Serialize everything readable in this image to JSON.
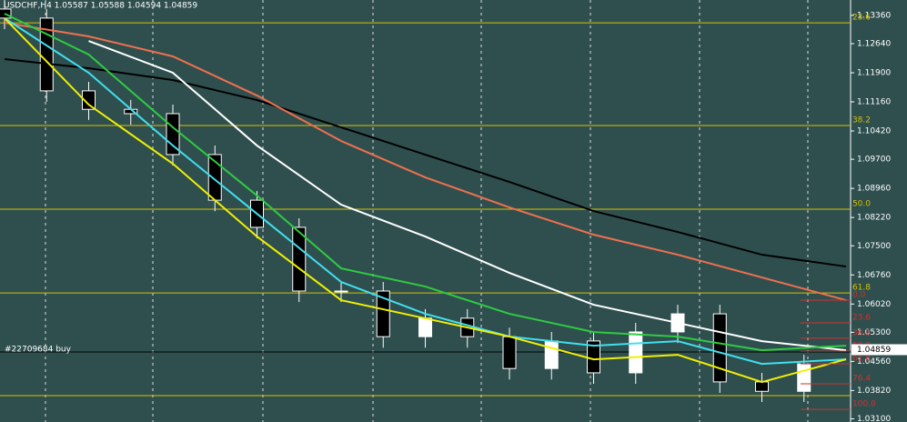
{
  "chart_data": {
    "type": "candlestick",
    "title": "USDCHF,H4  1.05587 1.05588 1.04594 1.04859",
    "ylim": [
      1.0302,
      1.1375
    ],
    "xlim": [
      0,
      40
    ],
    "yticks": [
      {
        "value": 1.1336,
        "label": "1.13360"
      },
      {
        "value": 1.1264,
        "label": "1.12640"
      },
      {
        "value": 1.119,
        "label": "1.11900"
      },
      {
        "value": 1.1116,
        "label": "1.11160"
      },
      {
        "value": 1.1042,
        "label": "1.10420"
      },
      {
        "value": 1.097,
        "label": "1.09700"
      },
      {
        "value": 1.0896,
        "label": "1.08960"
      },
      {
        "value": 1.0822,
        "label": "1.08220"
      },
      {
        "value": 1.075,
        "label": "1.07500"
      },
      {
        "value": 1.0676,
        "label": "1.06760"
      },
      {
        "value": 1.0602,
        "label": "1.06020"
      },
      {
        "value": 1.053,
        "label": "1.05300"
      },
      {
        "value": 1.0456,
        "label": "1.04560"
      },
      {
        "value": 1.0382,
        "label": "1.03820"
      },
      {
        "value": 1.031,
        "label": "1.03100"
      }
    ],
    "candles": {
      "bull_color": "#ffffff",
      "bear_color": "#000000",
      "wick_color": "#ffffff",
      "x": [
        0,
        2,
        4,
        6,
        8,
        10,
        12,
        14,
        16,
        18,
        20,
        22,
        24,
        26,
        28,
        30,
        32,
        34,
        36,
        38
      ],
      "open": [
        1.1352,
        1.1329,
        1.1144,
        1.1097,
        1.1086,
        1.0982,
        1.0866,
        1.0797,
        1.0635,
        1.0635,
        1.0519,
        1.0566,
        1.0519,
        1.0438,
        1.0508,
        1.0427,
        1.0531,
        1.0577,
        1.0404,
        1.038
      ],
      "high": [
        1.1375,
        1.1352,
        1.1167,
        1.1121,
        1.1109,
        1.1005,
        1.0889,
        1.082,
        1.0658,
        1.0658,
        1.0589,
        1.0589,
        1.0542,
        1.0531,
        1.0531,
        1.0554,
        1.06,
        1.06,
        1.0427,
        1.0473
      ],
      "low": [
        1.1301,
        1.1116,
        1.107,
        1.1058,
        1.0954,
        1.0838,
        1.0769,
        1.0607,
        1.0607,
        1.0491,
        1.0491,
        1.0491,
        1.041,
        1.041,
        1.0399,
        1.0399,
        1.0503,
        1.0376,
        1.0353,
        1.0353
      ],
      "close": [
        1.1329,
        1.1144,
        1.1097,
        1.1086,
        1.0982,
        1.0866,
        1.0797,
        1.0635,
        1.0635,
        1.0519,
        1.0566,
        1.0519,
        1.0438,
        1.0508,
        1.0427,
        1.0531,
        1.0577,
        1.0404,
        1.038,
        1.045
      ]
    },
    "x": [
      0,
      4,
      8,
      12,
      16,
      20,
      24,
      28,
      32,
      36,
      40
    ],
    "series": [
      {
        "color": "#000000",
        "values": [
          1.12247,
          1.12015,
          1.11715,
          1.11206,
          1.10512,
          1.09818,
          1.09124,
          1.08384,
          1.07852,
          1.07274,
          1.06973
        ]
      },
      {
        "color": "#f0704e",
        "values": [
          1.13172,
          1.12825,
          1.12316,
          1.11321,
          1.10165,
          1.0924,
          1.08476,
          1.07783,
          1.07274,
          1.06695,
          1.06117
        ]
      },
      {
        "color": "#ffffff",
        "values": [
          null,
          1.12709,
          1.119,
          1.10049,
          1.08546,
          1.07736,
          1.06811,
          1.06001,
          1.05539,
          1.05076,
          1.04845
        ]
      },
      {
        "color": "#2ecc40",
        "values": [
          1.13403,
          1.12362,
          1.10512,
          1.08777,
          1.06927,
          1.06464,
          1.0577,
          1.05307,
          1.05192,
          1.04845,
          1.04961
        ]
      },
      {
        "color": "#40e0f0",
        "values": [
          1.13287,
          1.119,
          1.10049,
          1.08314,
          1.0658,
          1.0577,
          1.05192,
          1.04961,
          1.05076,
          1.04498,
          1.04614
        ]
      },
      {
        "color": "#f0f000",
        "values": [
          1.13287,
          1.1109,
          1.09587,
          1.07736,
          1.06117,
          1.05655,
          1.05192,
          1.04614,
          1.04729,
          1.04035,
          1.04614
        ]
      }
    ],
    "fib_levels": {
      "color": "#d4c000",
      "levels": [
        {
          "price": 1.1317,
          "label": "23.6"
        },
        {
          "price": 1.1056,
          "label": "38.2"
        },
        {
          "price": 1.0843,
          "label": "50.0"
        },
        {
          "price": 1.063,
          "label": "61.8"
        },
        {
          "price": 1.0369,
          "label": null
        }
      ]
    },
    "fib_levels_2": {
      "color": "#d03030",
      "levels": [
        {
          "price": 1.0612,
          "label": "0.0"
        },
        {
          "price": 1.0554,
          "label": "23.6"
        },
        {
          "price": 1.0515,
          "label": "38.2"
        },
        {
          "price": 1.0482,
          "label": "50.0"
        },
        {
          "price": 1.045,
          "label": "61.8"
        },
        {
          "price": 1.0399,
          "label": "76.4"
        },
        {
          "price": 1.0334,
          "label": "100.0"
        }
      ]
    },
    "order": {
      "label": "#22709684 buy",
      "price": 1.048
    },
    "bid": {
      "value": 1.04859,
      "label": "1.04859"
    }
  }
}
